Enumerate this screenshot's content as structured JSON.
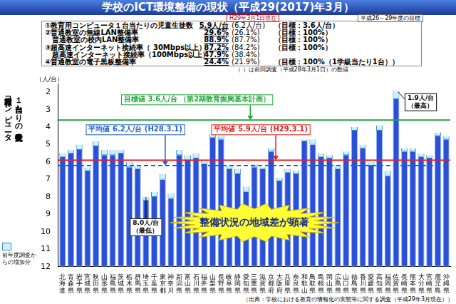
{
  "title": "学校のICT環境整備の現状（平成29(2017)年3月）",
  "summary": {
    "as_of": "H29年3月1日現在",
    "target_period": "平成26～29年度の目標",
    "rows": [
      {
        "label": "①教育用コンピュータ１台当たりの児童生徒数",
        "value": "5.9人/台",
        "previous": "(6.2人/台)",
        "target": "（目標：3.6人/台）"
      },
      {
        "label": "②普通教室の無線LAN整備率",
        "value": "29.6%",
        "previous": "(26.1%)",
        "target": "（目標：100%）"
      },
      {
        "label": "普通教室の校内LAN整備率",
        "value": "88.9%",
        "previous": "(87.7%)",
        "target": "（目標：100%）"
      },
      {
        "label": "③超高速インターネット接続率（ 30Mbps以上）",
        "value": "87.2%",
        "previous": "(84.2%)",
        "target": "（目標：100%）"
      },
      {
        "label": "超高速インターネット接続率（100Mbps以上）",
        "value": "47.9%",
        "previous": "(38.4%)"
      },
      {
        "label": "④普通教室の電子黒板整備率",
        "value": "24.4%",
        "previous": "(21.9%)",
        "target": "（目標：100%（1学級当たり1台））"
      }
    ]
  },
  "note": "（ ）は前回調査（平成28年3月1日）の数値",
  "source": "（出典：学校における教育の情報化の実態等に関する調査（平成29年3月現在））",
  "chart_data": {
    "type": "bar",
    "y_label": [
      "教育用コンピュータ",
      "１台当たりの児童生徒数"
    ],
    "y_unit": "（人/台）",
    "categories": [
      "北海道",
      "青森県",
      "岩手県",
      "宮城県",
      "秋田県",
      "山形県",
      "福島県",
      "茨城県",
      "栃木県",
      "群馬県",
      "埼玉県",
      "千葉県",
      "東京都",
      "神奈川",
      "新潟県",
      "富山県",
      "石川県",
      "福井県",
      "山梨県",
      "長野県",
      "岐阜県",
      "静岡県",
      "愛知県",
      "三重県",
      "滋賀県",
      "京都府",
      "大阪府",
      "兵庫県",
      "奈良県",
      "和歌山",
      "鳥取県",
      "島根県",
      "岡山県",
      "広島県",
      "山口県",
      "徳島県",
      "香川県",
      "愛媛県",
      "高知県",
      "福岡県",
      "佐賀県",
      "長崎県",
      "熊本県",
      "大分県",
      "宮崎県",
      "鹿児島",
      "沖縄県"
    ],
    "color": "#2b50d8",
    "series": [
      {
        "name": "前年度調査からの増加分",
        "color": "#c9f1fa",
        "values": [
          5.5,
          5.3,
          5.0,
          6.3,
          4.8,
          5.3,
          5.3,
          5.3,
          6.0,
          6.2,
          8.0,
          7.7,
          6.7,
          7.8,
          5.3,
          5.6,
          5.5,
          5.9,
          4.4,
          4.5,
          6.2,
          6.4,
          7.4,
          6.1,
          6.3,
          5.2,
          6.9,
          6.4,
          6.5,
          4.7,
          4.7,
          5.5,
          5.6,
          6.2,
          5.4,
          4.0,
          5.0,
          6.0,
          3.9,
          6.5,
          1.9,
          5.2,
          5.2,
          5.5,
          5.6,
          4.3,
          4.5
        ],
        "previous_values": [
          5.7,
          5.5,
          5.3,
          6.5,
          5.1,
          5.6,
          5.6,
          5.5,
          6.3,
          6.4,
          8.2,
          8.0,
          7.0,
          8.1,
          5.6,
          5.9,
          5.8,
          6.1,
          4.6,
          4.7,
          6.4,
          6.7,
          7.7,
          6.3,
          6.4,
          5.4,
          7.1,
          6.6,
          6.7,
          4.8,
          5.0,
          5.7,
          5.8,
          6.4,
          5.6,
          4.2,
          5.2,
          6.2,
          4.2,
          6.8,
          2.4,
          5.4,
          5.4,
          5.7,
          5.8,
          4.5,
          4.7
        ]
      }
    ],
    "ylim": [
      12,
      1.5
    ],
    "yticks": [
      2,
      3,
      4,
      5,
      6,
      7,
      8,
      9,
      10,
      11,
      12
    ],
    "grid": false,
    "legend": "lower left",
    "reference_lines": [
      {
        "value": 3.6,
        "color": "#22a83a",
        "line_style": "solid",
        "label": "目標値 3.6人/台 （第2期教育振興基本計画）"
      },
      {
        "value": 6.2,
        "color": "#1f5fd0",
        "line_style": "dashed",
        "label": "平均値 6.2人/台 (H28.3.1)"
      },
      {
        "value": 5.9,
        "color": "#e02020",
        "line_style": "solid",
        "label": "平均値 5.9人/台 (H29.3.1)"
      }
    ],
    "annotations": [
      {
        "category": "佐賀県",
        "text": [
          "1.9人/台",
          "（最高）"
        ]
      },
      {
        "category": "埼玉県",
        "text": [
          "8.0人/台",
          "（最低）"
        ]
      },
      {
        "text": [
          "整備状況の地域差が顕著"
        ]
      }
    ]
  }
}
